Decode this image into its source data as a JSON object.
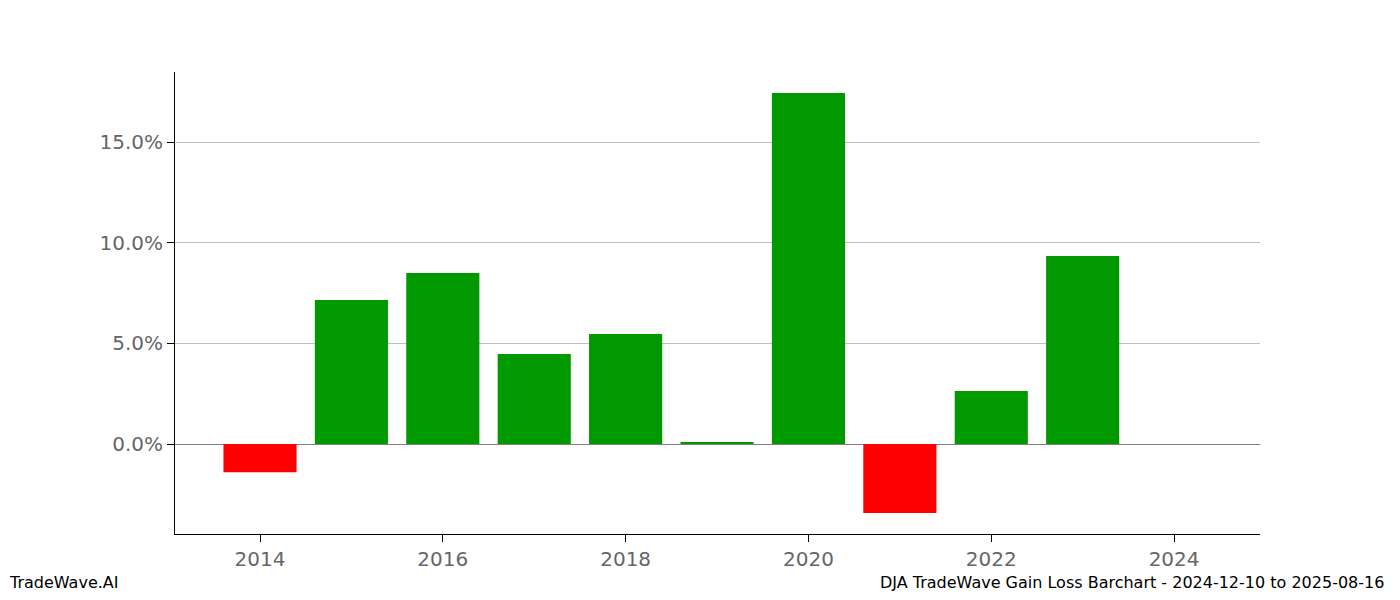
{
  "chart_data": {
    "type": "bar",
    "x": [
      2014,
      2015,
      2016,
      2017,
      2018,
      2019,
      2020,
      2021,
      2022,
      2023
    ],
    "values": [
      -1.4,
      7.15,
      8.49,
      4.47,
      5.46,
      0.1,
      17.44,
      -3.43,
      2.63,
      9.34
    ],
    "colors": [
      "#ff0000",
      "#009900",
      "#009900",
      "#009900",
      "#009900",
      "#009900",
      "#009900",
      "#ff0000",
      "#009900",
      "#009900"
    ],
    "xlim": [
      2013.07,
      2024.94
    ],
    "xticks": [
      2014,
      2016,
      2018,
      2020,
      2022,
      2024
    ],
    "ylim": [
      -4.47,
      18.48
    ],
    "yticks": [
      {
        "value": 0,
        "label": "0.0%"
      },
      {
        "value": 5,
        "label": "5.0%"
      },
      {
        "value": 10,
        "label": "10.0%"
      },
      {
        "value": 15,
        "label": "15.0%"
      }
    ],
    "grid": true,
    "annotations": [
      "TradeWave.AI",
      "DJA TradeWave Gain Loss Barchart - 2024-12-10 to 2025-08-16"
    ]
  }
}
